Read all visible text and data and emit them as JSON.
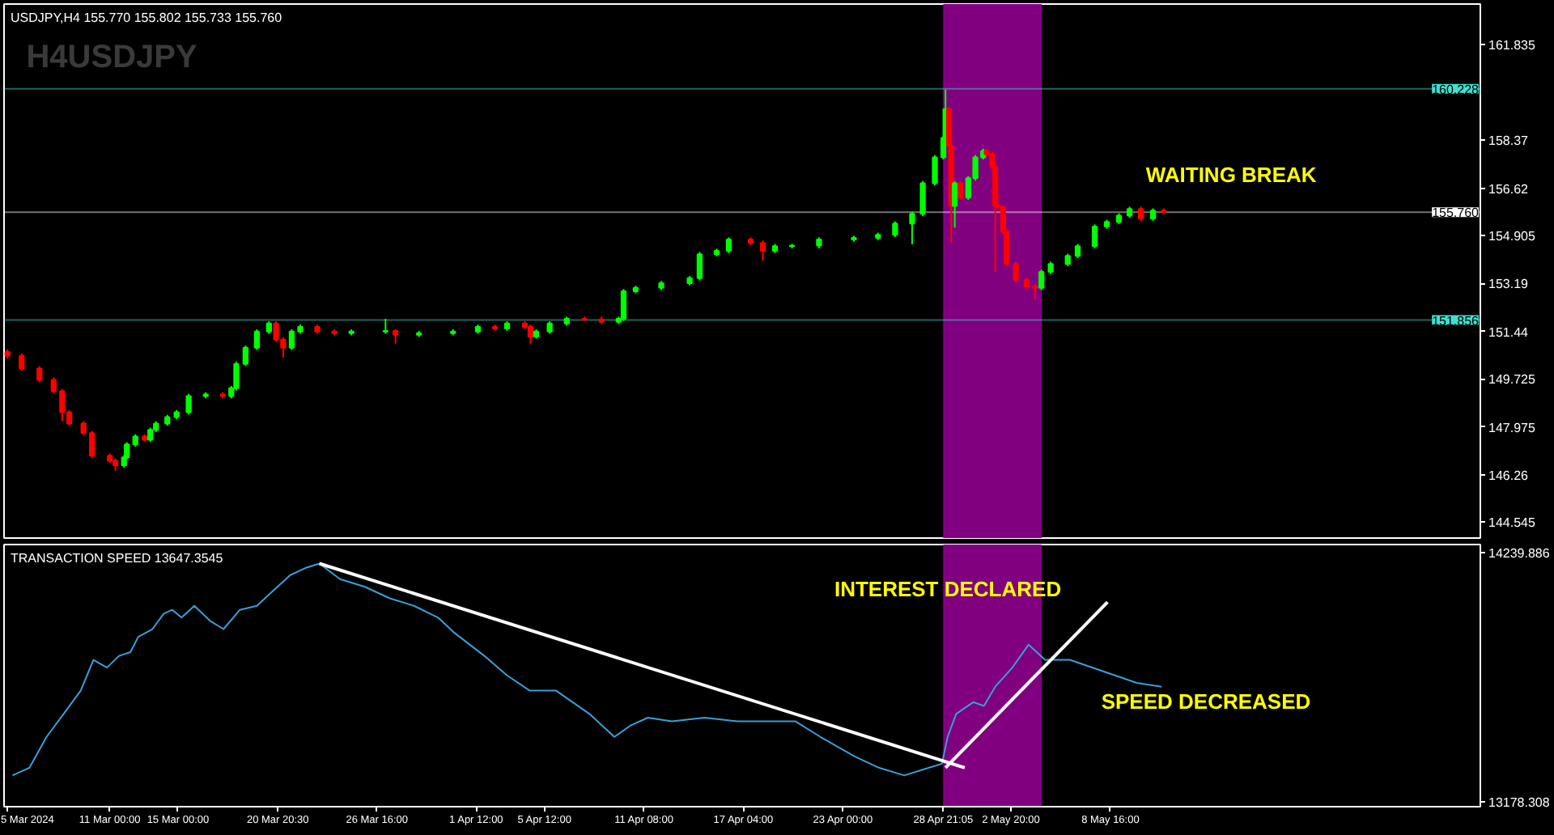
{
  "chart_data": [
    {
      "type": "candlestick",
      "title": "USDJPY,H4 155.770 155.802 155.733 155.760",
      "annotations": [
        "H4USDJPY",
        "WAITING BREAK"
      ],
      "x": [
        "2024-03-05T00:00",
        "2024-03-05T20:00",
        "2024-03-06T21:00",
        "2024-03-07T17:00",
        "2024-03-08T05:00",
        "2024-03-08T15:00",
        "2024-03-09T11:00",
        "2024-03-09T23:00",
        "2024-03-11T00:00",
        "2024-03-11T08:00",
        "2024-03-11T20:00",
        "2024-03-12T00:00",
        "2024-03-12T12:00",
        "2024-03-13T01:00",
        "2024-03-13T09:00",
        "2024-03-13T17:00",
        "2024-03-14T09:00",
        "2024-03-14T22:00",
        "2024-03-15T15:00",
        "2024-03-16T15:00",
        "2024-03-17T15:00",
        "2024-03-18T03:00",
        "2024-03-18T10:00",
        "2024-03-18T23:00",
        "2024-03-19T15:00",
        "2024-03-20T08:00",
        "2024-03-20T18:00",
        "2024-03-21T04:00",
        "2024-03-21T16:00",
        "2024-03-22T04:00",
        "2024-03-23T04:00",
        "2024-03-24T04:00",
        "2024-03-25T04:00",
        "2024-03-27T04:00",
        "2024-03-27T18:00",
        "2024-03-29T03:00",
        "2024-03-31T03:00",
        "2024-04-01T14:00",
        "2024-04-02T14:00",
        "2024-04-03T07:00",
        "2024-04-04T08:00",
        "2024-04-04T16:00",
        "2024-04-05T00:00",
        "2024-04-05T19:00",
        "2024-04-06T19:00",
        "2024-04-07T20:00",
        "2024-04-08T20:00",
        "2024-04-09T20:00",
        "2024-04-10T03:00",
        "2024-04-10T20:00",
        "2024-04-12T08:00",
        "2024-04-14T00:00",
        "2024-04-14T14:00",
        "2024-04-15T14:00",
        "2024-04-16T07:00",
        "2024-04-17T14:00",
        "2024-04-18T07:00",
        "2024-04-19T00:00",
        "2024-04-20T00:00",
        "2024-04-21T14:00",
        "2024-04-23T15:00",
        "2024-04-25T01:00",
        "2024-04-26T01:00",
        "2024-04-27T01:00",
        "2024-04-27T16:00",
        "2024-04-28T09:00",
        "2024-04-28T21:00",
        "2024-04-29T00:00",
        "2024-04-29T05:00",
        "2024-04-29T08:00",
        "2024-04-29T13:00",
        "2024-04-29T21:00",
        "2024-04-30T08:00",
        "2024-04-30T18:00",
        "2024-05-01T05:00",
        "2024-05-01T10:00",
        "2024-05-01T18:00",
        "2024-05-01T22:00",
        "2024-05-02T02:00",
        "2024-05-02T09:00",
        "2024-05-02T14:00",
        "2024-05-03T03:00",
        "2024-05-03T18:00",
        "2024-05-04T06:00",
        "2024-05-04T15:00",
        "2024-05-05T04:00",
        "2024-05-06T04:00",
        "2024-05-06T18:00",
        "2024-05-07T18:00",
        "2024-05-08T11:00",
        "2024-05-09T04:00",
        "2024-05-09T19:00",
        "2024-05-10T11:00",
        "2024-05-11T04:00",
        "2024-05-11T19:00"
      ],
      "ohlc": [
        [
          150.7,
          150.8,
          150.45,
          150.56
        ],
        [
          150.56,
          150.65,
          150.02,
          150.1
        ],
        [
          150.1,
          150.18,
          149.6,
          149.69
        ],
        [
          149.69,
          149.78,
          149.2,
          149.28
        ],
        [
          149.28,
          149.36,
          148.2,
          148.52
        ],
        [
          148.52,
          148.6,
          148.03,
          148.11
        ],
        [
          148.11,
          148.19,
          147.68,
          147.76
        ],
        [
          147.76,
          147.84,
          146.86,
          146.94
        ],
        [
          146.94,
          147.02,
          146.68,
          146.76
        ],
        [
          146.76,
          146.84,
          146.4,
          146.59
        ],
        [
          146.59,
          146.96,
          146.51,
          146.88
        ],
        [
          146.88,
          147.43,
          146.8,
          147.35
        ],
        [
          147.35,
          147.72,
          147.27,
          147.64
        ],
        [
          147.64,
          147.72,
          147.44,
          147.52
        ],
        [
          147.52,
          147.96,
          147.44,
          147.88
        ],
        [
          147.88,
          148.19,
          147.8,
          148.11
        ],
        [
          148.11,
          148.42,
          148.03,
          148.34
        ],
        [
          148.34,
          148.6,
          148.26,
          148.52
        ],
        [
          148.52,
          149.18,
          148.44,
          149.1
        ],
        [
          149.1,
          149.24,
          149.02,
          149.16
        ],
        [
          149.16,
          149.24,
          149.02,
          149.1
        ],
        [
          149.1,
          149.47,
          149.02,
          149.39
        ],
        [
          149.39,
          150.35,
          149.31,
          150.27
        ],
        [
          150.27,
          150.93,
          150.19,
          150.85
        ],
        [
          150.85,
          151.52,
          150.77,
          151.44
        ],
        [
          151.44,
          151.81,
          151.36,
          151.73
        ],
        [
          151.73,
          151.81,
          151.07,
          151.15
        ],
        [
          151.15,
          151.23,
          150.5,
          150.85
        ],
        [
          150.85,
          151.52,
          150.77,
          151.44
        ],
        [
          151.44,
          151.69,
          151.36,
          151.61
        ],
        [
          151.61,
          151.69,
          151.36,
          151.44
        ],
        [
          151.44,
          151.52,
          151.3,
          151.38
        ],
        [
          151.38,
          151.52,
          151.3,
          151.44
        ],
        [
          151.44,
          151.9,
          151.36,
          151.46
        ],
        [
          151.46,
          151.52,
          151.0,
          151.32
        ],
        [
          151.32,
          151.46,
          151.24,
          151.38
        ],
        [
          151.38,
          151.52,
          151.3,
          151.44
        ],
        [
          151.44,
          151.69,
          151.36,
          151.61
        ],
        [
          151.61,
          151.69,
          151.47,
          151.55
        ],
        [
          151.55,
          151.81,
          151.47,
          151.73
        ],
        [
          151.73,
          151.81,
          151.53,
          151.61
        ],
        [
          151.61,
          151.69,
          151.0,
          151.26
        ],
        [
          151.26,
          151.52,
          151.18,
          151.44
        ],
        [
          151.44,
          151.81,
          151.36,
          151.73
        ],
        [
          151.73,
          151.98,
          151.65,
          151.9
        ],
        [
          151.9,
          151.98,
          151.82,
          151.88
        ],
        [
          151.88,
          151.98,
          151.71,
          151.79
        ],
        [
          151.79,
          151.98,
          151.71,
          151.9
        ],
        [
          151.9,
          152.98,
          151.82,
          152.9
        ],
        [
          152.9,
          153.1,
          152.82,
          153.02
        ],
        [
          153.02,
          153.27,
          152.94,
          153.19
        ],
        [
          153.19,
          153.45,
          153.11,
          153.37
        ],
        [
          153.37,
          154.32,
          153.29,
          154.24
        ],
        [
          154.24,
          154.44,
          154.16,
          154.36
        ],
        [
          154.36,
          154.85,
          154.28,
          154.77
        ],
        [
          154.77,
          154.85,
          154.57,
          154.65
        ],
        [
          154.65,
          154.73,
          154.0,
          154.36
        ],
        [
          154.36,
          154.61,
          154.28,
          154.53
        ],
        [
          154.53,
          154.61,
          154.45,
          154.55
        ],
        [
          154.55,
          154.85,
          154.45,
          154.77
        ],
        [
          154.77,
          154.91,
          154.69,
          154.83
        ],
        [
          154.83,
          155.02,
          154.75,
          154.94
        ],
        [
          154.94,
          155.43,
          154.86,
          155.35
        ],
        [
          155.35,
          155.78,
          154.6,
          155.7
        ],
        [
          155.7,
          156.89,
          155.62,
          156.81
        ],
        [
          156.81,
          157.83,
          156.73,
          157.75
        ],
        [
          157.75,
          158.53,
          157.67,
          158.45
        ],
        [
          158.45,
          160.2,
          158.37,
          159.5
        ],
        [
          159.5,
          159.58,
          158.08,
          158.16
        ],
        [
          158.16,
          158.24,
          154.65,
          155.99
        ],
        [
          155.99,
          156.89,
          155.2,
          156.81
        ],
        [
          156.81,
          156.89,
          156.21,
          156.29
        ],
        [
          156.29,
          157.07,
          156.21,
          156.99
        ],
        [
          156.99,
          157.83,
          156.91,
          157.75
        ],
        [
          157.75,
          158.06,
          157.67,
          157.98
        ],
        [
          157.98,
          158.06,
          157.78,
          157.86
        ],
        [
          157.86,
          157.94,
          157.32,
          157.4
        ],
        [
          157.4,
          157.48,
          153.6,
          155.99
        ],
        [
          155.99,
          156.07,
          155.86,
          155.94
        ],
        [
          155.94,
          156.02,
          154.98,
          155.06
        ],
        [
          155.06,
          155.14,
          153.81,
          153.89
        ],
        [
          153.89,
          153.97,
          153.23,
          153.31
        ],
        [
          153.31,
          153.39,
          152.99,
          153.07
        ],
        [
          153.07,
          153.15,
          152.6,
          153.02
        ],
        [
          153.02,
          153.68,
          152.94,
          153.6
        ],
        [
          153.6,
          153.97,
          153.52,
          153.89
        ],
        [
          153.89,
          154.26,
          153.81,
          154.18
        ],
        [
          154.18,
          154.61,
          154.1,
          154.53
        ],
        [
          154.53,
          155.32,
          154.45,
          155.24
        ],
        [
          155.24,
          155.49,
          155.16,
          155.41
        ],
        [
          155.41,
          155.72,
          155.33,
          155.64
        ],
        [
          155.64,
          155.96,
          155.56,
          155.88
        ],
        [
          155.88,
          155.96,
          155.45,
          155.53
        ],
        [
          155.53,
          155.9,
          155.45,
          155.82
        ],
        [
          155.82,
          155.9,
          155.73,
          155.76
        ]
      ],
      "xlim": [
        "2024-03-04T19:12",
        "2024-05-30T08:36"
      ],
      "ylim": [
        143.96,
        163.3
      ],
      "yticks": [
        144.545,
        146.26,
        147.975,
        149.725,
        151.44,
        153.19,
        154.905,
        156.62,
        158.37,
        161.835
      ],
      "tick_labels": "y",
      "ref_lines": [
        {
          "axis": "y",
          "value": 160.228,
          "label": "160.228",
          "color": "#40e0d0"
        },
        {
          "axis": "y",
          "value": 155.76,
          "label": "155.760",
          "color": "#ffffff"
        },
        {
          "axis": "y",
          "value": 151.856,
          "label": "151.856",
          "color": "#40e0d0"
        }
      ],
      "bands": [
        {
          "axis": "x",
          "from": "2024-04-28T21:05",
          "to": "2024-05-04T15:00",
          "color": "#800080"
        }
      ]
    },
    {
      "type": "line",
      "title": "TRANSACTION SPEED 13647.3545",
      "annotations": [
        "INTEREST DECLARED",
        "SPEED DECREASED"
      ],
      "series": [
        {
          "color": "#3a9fd8",
          "x": [
            "2024-03-05T07:00",
            "2024-03-06T07:00",
            "2024-03-07T07:00",
            "2024-03-08T07:00",
            "2024-03-09T07:00",
            "2024-03-10T01:00",
            "2024-03-10T20:00",
            "2024-03-11T13:00",
            "2024-03-12T05:00",
            "2024-03-12T16:00",
            "2024-03-13T12:00",
            "2024-03-14T04:00",
            "2024-03-14T16:00",
            "2024-03-15T05:00",
            "2024-03-15T23:00",
            "2024-03-16T22:00",
            "2024-03-17T16:00",
            "2024-03-18T15:00",
            "2024-03-19T15:00",
            "2024-03-20T14:00",
            "2024-03-21T14:00",
            "2024-03-22T13:00",
            "2024-03-23T07:00",
            "2024-03-24T12:00",
            "2024-03-25T23:00",
            "2024-03-27T10:00",
            "2024-03-28T20:00",
            "2024-03-30T06:00",
            "2024-03-31T05:00",
            "2024-04-01T23:00",
            "2024-04-03T07:00",
            "2024-04-04T15:00",
            "2024-04-06T04:00",
            "2024-04-08T03:00",
            "2024-04-09T14:00",
            "2024-04-10T13:00",
            "2024-04-11T13:00",
            "2024-04-12T23:00",
            "2024-04-14T21:00",
            "2024-04-16T19:00",
            "2024-04-18T18:00",
            "2024-04-20T05:00",
            "2024-04-21T16:00",
            "2024-04-23T15:00",
            "2024-04-25T02:00",
            "2024-04-26T14:00",
            "2024-04-28T01:00",
            "2024-04-28T19:00",
            "2024-04-29T03:00",
            "2024-04-29T15:00",
            "2024-04-30T15:00",
            "2024-05-01T06:00",
            "2024-05-01T22:00",
            "2024-05-02T22:00",
            "2024-05-03T21:00",
            "2024-05-04T20:00",
            "2024-05-06T07:00",
            "2024-05-08T06:00",
            "2024-05-10T05:00",
            "2024-05-11T16:00"
          ],
          "values": [
            13291,
            13324,
            13455,
            13553,
            13652,
            13783,
            13750,
            13800,
            13816,
            13881,
            13914,
            13980,
            13996,
            13963,
            14013,
            13947,
            13914,
            13996,
            14013,
            14078,
            14144,
            14176,
            14193,
            14127,
            14094,
            14045,
            14013,
            13963,
            13898,
            13800,
            13717,
            13652,
            13652,
            13553,
            13455,
            13504,
            13537,
            13521,
            13537,
            13521,
            13521,
            13521,
            13455,
            13374,
            13324,
            13291,
            13324,
            13341,
            13455,
            13553,
            13603,
            13587,
            13669,
            13750,
            13848,
            13783,
            13783,
            13734,
            13685,
            13669
          ]
        },
        {
          "type": "line",
          "color": "#ffffff",
          "x": [
            "2024-03-23T07:00",
            "2024-04-30T03:00"
          ],
          "values": [
            14193,
            13324
          ]
        },
        {
          "type": "line",
          "color": "#ffffff",
          "x": [
            "2024-04-29T00:00",
            "2024-05-08T12:00"
          ],
          "values": [
            13324,
            14029
          ]
        }
      ],
      "xlim": [
        "2024-03-04T19:12",
        "2024-05-30T08:36"
      ],
      "ylim": [
        13158,
        14274
      ],
      "yticks": [
        13178.308,
        14239.886
      ],
      "xticks": [
        {
          "value": "2024-03-05",
          "label": "5 Mar 2024"
        },
        {
          "value": "2024-03-11T00:00",
          "label": "11 Mar 00:00"
        },
        {
          "value": "2024-03-15T00:00",
          "label": "15 Mar 00:00"
        },
        {
          "value": "2024-03-20T20:30",
          "label": "20 Mar 20:30"
        },
        {
          "value": "2024-03-26T16:00",
          "label": "26 Mar 16:00"
        },
        {
          "value": "2024-04-01T12:00",
          "label": "1 Apr 12:00"
        },
        {
          "value": "2024-04-05T12:00",
          "label": "5 Apr 12:00"
        },
        {
          "value": "2024-04-11T08:00",
          "label": "11 Apr 08:00"
        },
        {
          "value": "2024-04-17T04:00",
          "label": "17 Apr 04:00"
        },
        {
          "value": "2024-04-23T00:00",
          "label": "23 Apr 00:00"
        },
        {
          "value": "2024-04-28T21:05",
          "label": "28 Apr 21:05"
        },
        {
          "value": "2024-05-02T20:00",
          "label": "2 May 20:00"
        },
        {
          "value": "2024-05-08T16:00",
          "label": "8 May 16:00"
        }
      ],
      "bands": [
        {
          "axis": "x",
          "from": "2024-04-28T21:05",
          "to": "2024-05-04T15:00",
          "color": "#800080"
        }
      ]
    }
  ]
}
